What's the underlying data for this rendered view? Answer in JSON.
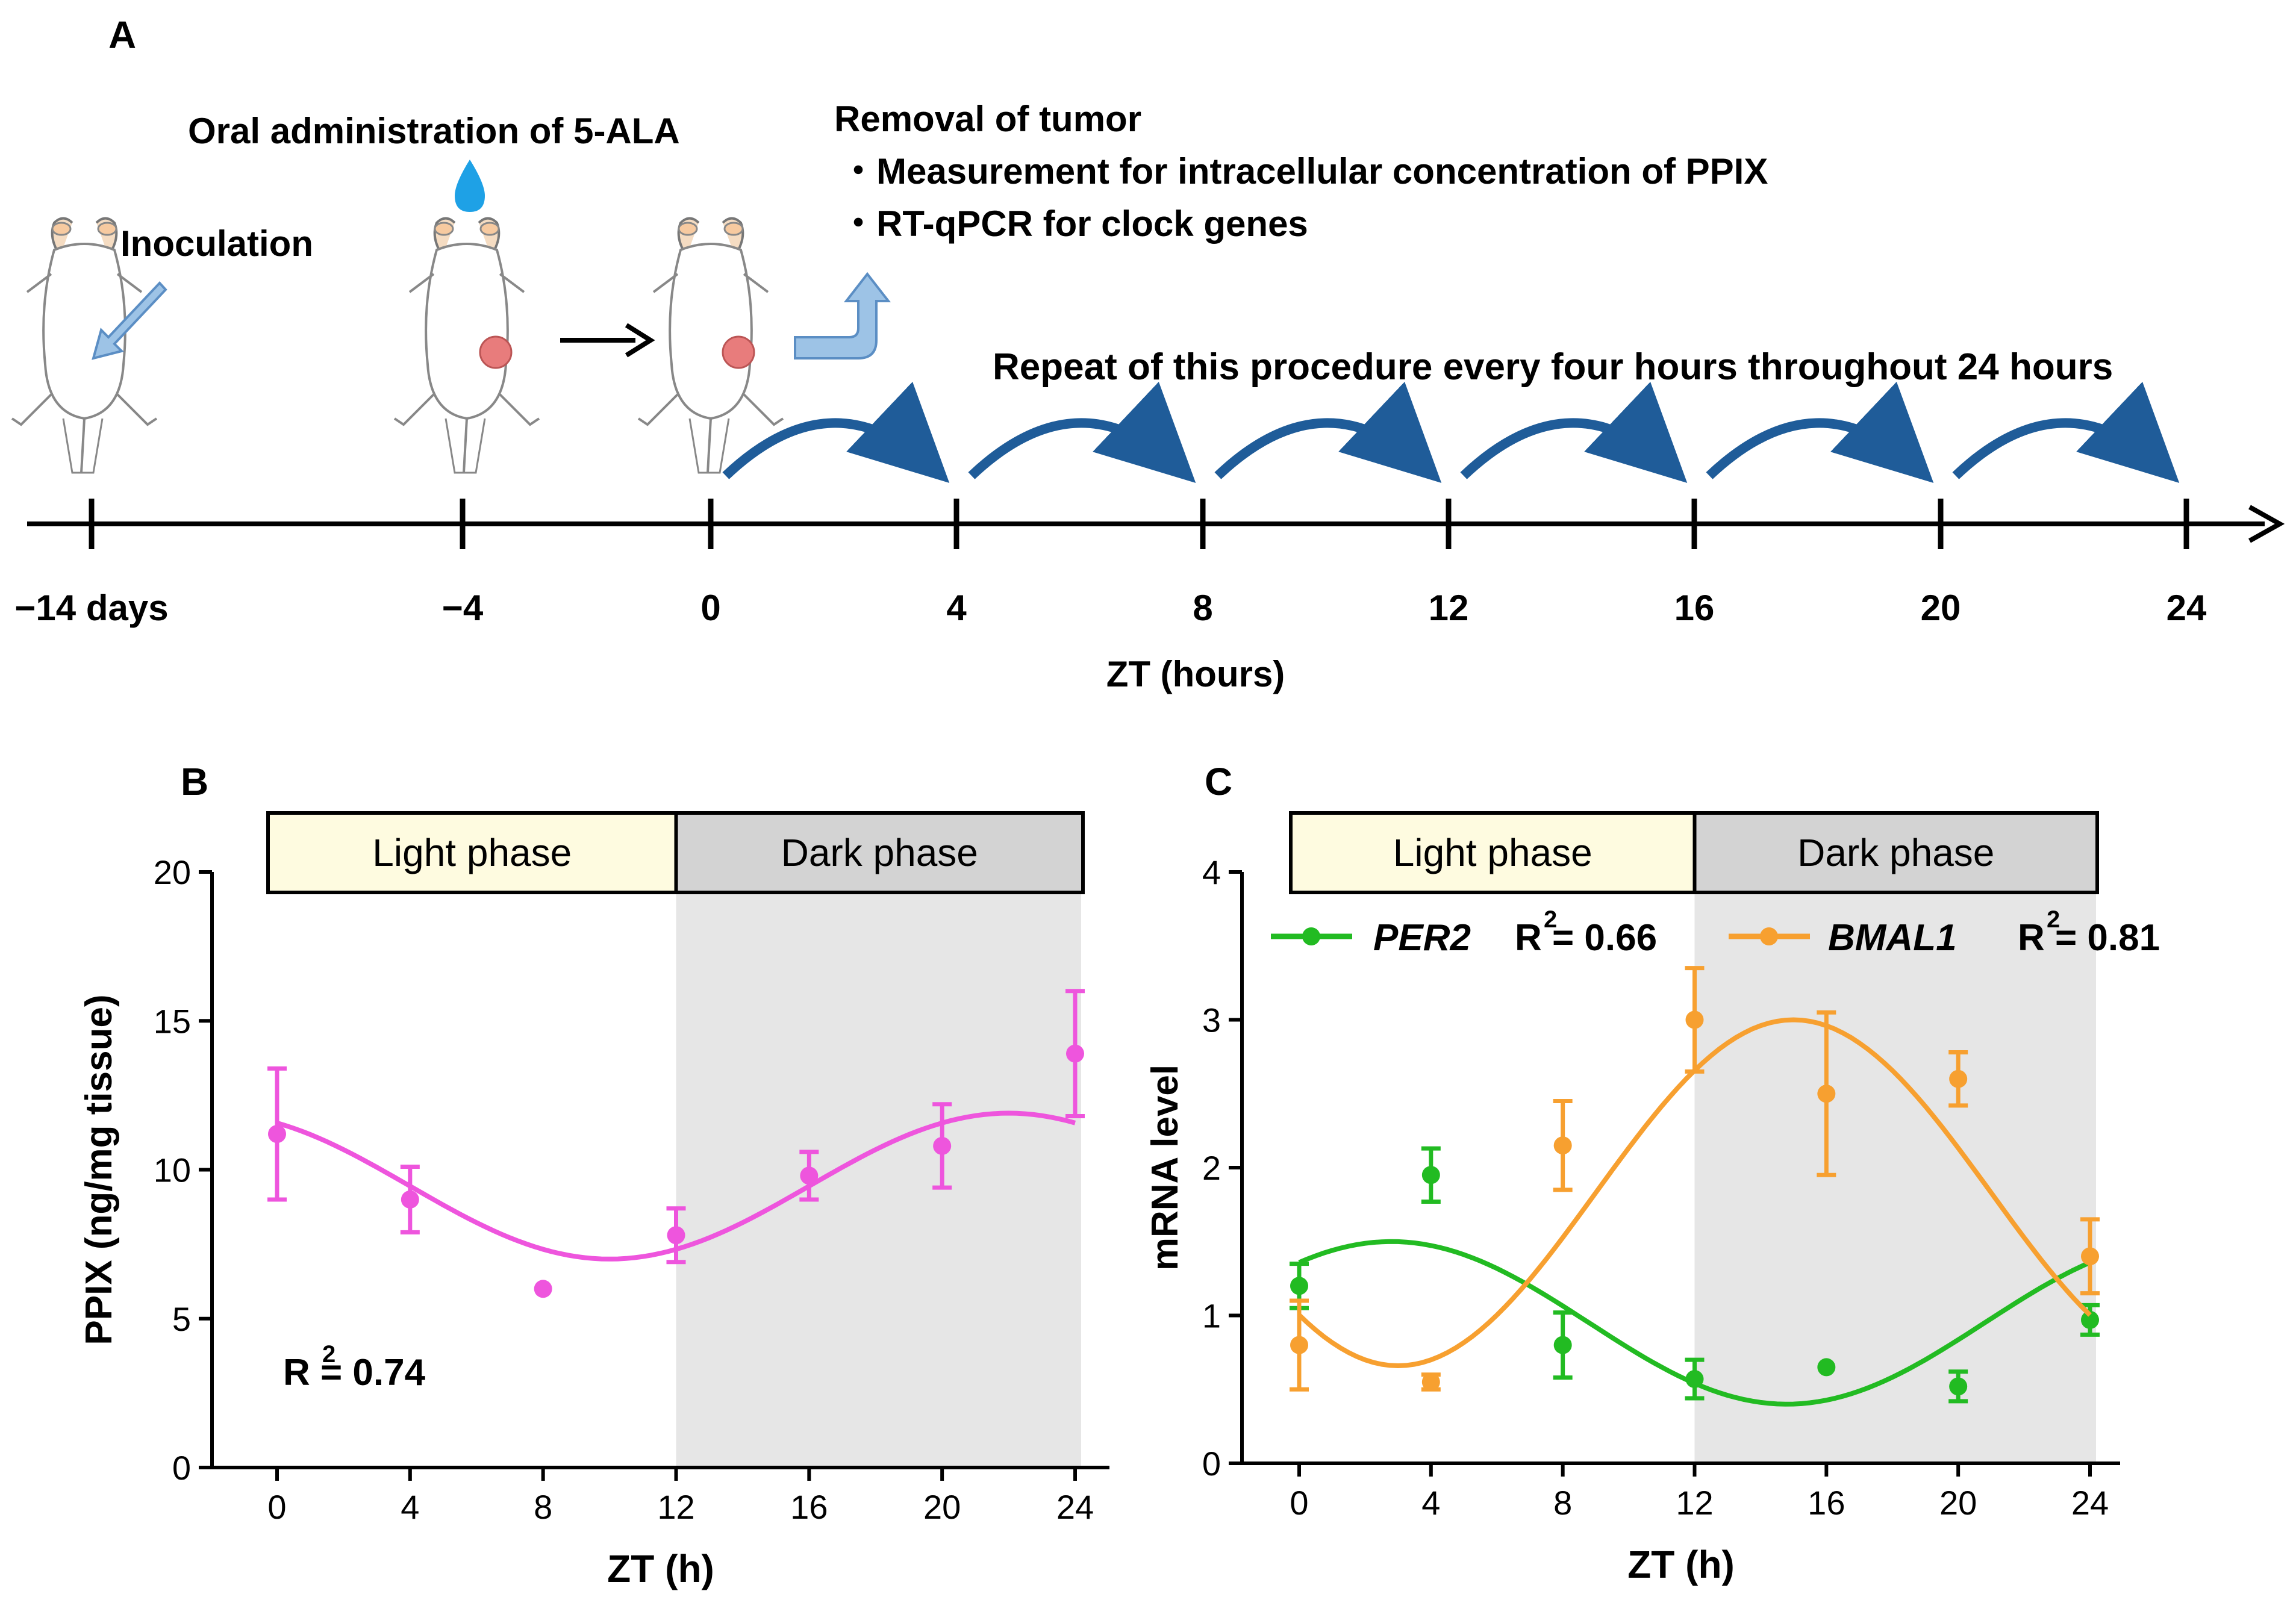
{
  "panel_a": {
    "label": "A",
    "oral_label": "Oral administration  of 5-ALA",
    "removal_label": "Removal of tumor",
    "bullet_1": "・Measurement  for intracellular  concentration  of PPIX",
    "bullet_2": "・RT-qPCR for clock genes",
    "inoculation_label": "Inoculation",
    "repeat_label": "Repeat of this procedure  every four hours throughout 24 hours",
    "timeline_ticks": [
      "−14 days",
      "−4",
      "0",
      "4",
      "8",
      "12",
      "16",
      "20",
      "24"
    ],
    "xlabel": "ZT (hours)",
    "colors": {
      "arrow": "#1f5c99",
      "drop": "#1ea1e6",
      "tumor": "#e87c7c",
      "hollow_arrow": "#9dc3e6"
    }
  },
  "chart_data": [
    {
      "id": "B",
      "type": "scatter",
      "label": "B",
      "phase_labels": [
        "Light phase",
        "Dark phase"
      ],
      "ylabel": "PPIX (ng/mg tissue)",
      "xlabel": "ZT (h)",
      "xlim": [
        0,
        24
      ],
      "ylim": [
        0,
        20
      ],
      "xticks": [
        0,
        4,
        8,
        12,
        16,
        20,
        24
      ],
      "yticks": [
        0,
        5,
        10,
        15,
        20
      ],
      "dark_range": [
        12,
        24
      ],
      "annotation": "R  = 0.74",
      "annotation_sup": "2",
      "series": [
        {
          "name": "PPIX",
          "color": "#ee55dd",
          "x": [
            0,
            4,
            8,
            12,
            16,
            20,
            24
          ],
          "y": [
            11.2,
            9.0,
            6.0,
            7.8,
            9.8,
            10.8,
            13.9
          ],
          "err": [
            2.2,
            1.1,
            0,
            0.9,
            0.8,
            1.4,
            2.1
          ],
          "fit": {
            "mesor": 9.45,
            "amplitude": 2.45,
            "acrophase": 22.0
          }
        }
      ]
    },
    {
      "id": "C",
      "type": "scatter",
      "label": "C",
      "phase_labels": [
        "Light phase",
        "Dark phase"
      ],
      "ylabel": "mRNA level",
      "xlabel": "ZT (h)",
      "xlim": [
        0,
        24
      ],
      "ylim": [
        0,
        4
      ],
      "xticks": [
        0,
        4,
        8,
        12,
        16,
        20,
        24
      ],
      "yticks": [
        0,
        1,
        2,
        3,
        4
      ],
      "dark_range": [
        12,
        24
      ],
      "legend": [
        {
          "name": "PER2",
          "r2": "R  = 0.66",
          "sup": "2"
        },
        {
          "name": "BMAL1",
          "r2": "R  = 0.81",
          "sup": "2"
        }
      ],
      "series": [
        {
          "name": "PER2",
          "color": "#22bb22",
          "x": [
            0,
            4,
            8,
            12,
            16,
            20,
            24
          ],
          "y": [
            1.2,
            1.95,
            0.8,
            0.57,
            0.65,
            0.52,
            0.97
          ],
          "err": [
            0.15,
            0.18,
            0.22,
            0.13,
            0,
            0.1,
            0.1
          ],
          "fit": {
            "mesor": 0.95,
            "amplitude": 0.55,
            "acrophase": 2.8
          }
        },
        {
          "name": "BMAL1",
          "color": "#f7a030",
          "x": [
            0,
            4,
            8,
            12,
            16,
            20,
            24
          ],
          "y": [
            0.8,
            0.55,
            2.15,
            3.0,
            2.5,
            2.6,
            1.4
          ],
          "err": [
            0.3,
            0.05,
            0.3,
            0.35,
            0.55,
            0.18,
            0.25
          ],
          "fit": {
            "mesor": 1.83,
            "amplitude": 1.17,
            "acrophase": 15.0
          }
        }
      ]
    }
  ]
}
